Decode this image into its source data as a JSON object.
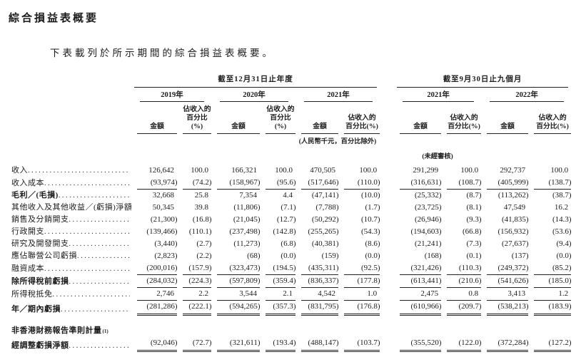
{
  "colors": {
    "text": "#1c1c1c",
    "background": "#ffffff",
    "rule": "#222222"
  },
  "page": {
    "title": "綜合損益表概要",
    "intro": "下表載列於所示期間的綜合損益表概要。"
  },
  "table": {
    "group_headers": [
      {
        "label": "截至12月31日止年度"
      },
      {
        "label": "截至9月30日止九個月"
      }
    ],
    "year_headers": [
      "2019年",
      "2020年",
      "2021年",
      "2021年",
      "2022年"
    ],
    "amount_header": "金額",
    "pct_header_line1": "佔收入的",
    "pct_header_line2": "百分比(%)",
    "unit_note": "(人民幣千元，百分比除外)",
    "unaudited_note": "(未經審核)",
    "rows": [
      {
        "label": "收入",
        "bold": false,
        "leader": true,
        "rule": "none",
        "values": [
          "126,642",
          "100.0",
          "166,321",
          "100.0",
          "470,505",
          "100.0",
          "291,299",
          "100.0",
          "292,737",
          "100.0"
        ]
      },
      {
        "label": "收入成本",
        "bold": false,
        "leader": true,
        "rule": "single",
        "values": [
          "(93,974)",
          "(74.2)",
          "(158,967)",
          "(95.6)",
          "(517,646)",
          "(110.0)",
          "(316,631)",
          "(108.7)",
          "(405,999)",
          "(138.7)"
        ]
      },
      {
        "label": "毛利／(毛損)",
        "bold": true,
        "leader": true,
        "rule": "none",
        "values": [
          "32,668",
          "25.8",
          "7,354",
          "4.4",
          "(47,141)",
          "(10.0)",
          "(25,332)",
          "(8.7)",
          "(113,262)",
          "(38.7)"
        ]
      },
      {
        "label": "其他收入及其他收益／(虧損)淨額",
        "bold": false,
        "leader": true,
        "rule": "none",
        "values": [
          "50,345",
          "39.8",
          "(11,806)",
          "(7.1)",
          "(7,788)",
          "(1.7)",
          "(23,725)",
          "(8.1)",
          "47,549",
          "16.2"
        ]
      },
      {
        "label": "銷售及分銷開支",
        "bold": false,
        "leader": true,
        "rule": "none",
        "values": [
          "(21,300)",
          "(16.8)",
          "(21,045)",
          "(12.7)",
          "(50,292)",
          "(10.7)",
          "(26,946)",
          "(9.3)",
          "(41,835)",
          "(14.3)"
        ]
      },
      {
        "label": "行政開支",
        "bold": false,
        "leader": true,
        "rule": "none",
        "values": [
          "(139,466)",
          "(110.1)",
          "(237,498)",
          "(142.8)",
          "(255,265)",
          "(54.3)",
          "(194,603)",
          "(66.8)",
          "(156,932)",
          "(53.6)"
        ]
      },
      {
        "label": "研究及開發開支",
        "bold": false,
        "leader": true,
        "rule": "none",
        "values": [
          "(3,440)",
          "(2.7)",
          "(11,273)",
          "(6.8)",
          "(40,381)",
          "(8.6)",
          "(21,241)",
          "(7.3)",
          "(27,637)",
          "(9.4)"
        ]
      },
      {
        "label": "應佔聯營公司虧損",
        "bold": false,
        "leader": true,
        "rule": "none",
        "values": [
          "(2,823)",
          "(2.2)",
          "(68)",
          "(0.0)",
          "(159)",
          "(0.0)",
          "(168)",
          "(0.1)",
          "(137)",
          "(0.0)"
        ]
      },
      {
        "label": "融資成本",
        "bold": false,
        "leader": true,
        "rule": "single",
        "values": [
          "(200,016)",
          "(157.9)",
          "(323,473)",
          "(194.5)",
          "(435,311)",
          "(92.5)",
          "(321,426)",
          "(110.3)",
          "(249,372)",
          "(85.2)"
        ]
      },
      {
        "label": "除所得稅前虧損",
        "bold": true,
        "leader": true,
        "rule": "single",
        "values": [
          "(284,032)",
          "(224.3)",
          "(597,809)",
          "(359.4)",
          "(836,337)",
          "(177.8)",
          "(613,441)",
          "(210.6)",
          "(541,626)",
          "(185.0)"
        ]
      },
      {
        "label": "所得稅抵免",
        "bold": false,
        "leader": true,
        "rule": "single",
        "values": [
          "2,746",
          "2.2",
          "3,544",
          "2.1",
          "4,542",
          "1.0",
          "2,475",
          "0.8",
          "3,413",
          "1.2"
        ]
      },
      {
        "label": "年／期內虧損",
        "bold": true,
        "leader": true,
        "rule": "double",
        "values": [
          "(281,286)",
          "(222.1)",
          "(594,265)",
          "(357.3)",
          "(831,795)",
          "(176.8)",
          "(610,966)",
          "(209.7)",
          "(538,213)",
          "(183.9)"
        ]
      },
      {
        "type": "spacer"
      },
      {
        "label": "非香港財務報告準則計量",
        "sup": "(1)",
        "bold": true,
        "leader": false,
        "rule": "none",
        "values": []
      },
      {
        "label": "經調整虧損淨額",
        "bold": true,
        "leader": true,
        "rule": "double",
        "values": [
          "(92,046)",
          "(72.7)",
          "(321,611)",
          "(193.4)",
          "(488,147)",
          "(103.7)",
          "(355,520)",
          "(122.0)",
          "(372,284)",
          "(127.2)"
        ]
      }
    ]
  }
}
